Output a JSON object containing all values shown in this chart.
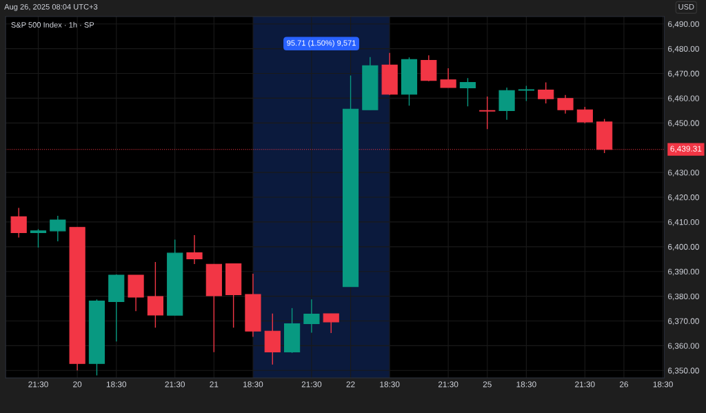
{
  "chart_data": {
    "type": "candlestick",
    "title": "S&P 500 Index · 1h · SP",
    "categories": [
      null,
      "21:30",
      null,
      "20",
      null,
      "18:30",
      null,
      null,
      "21:30",
      null,
      "21",
      null,
      "18:30",
      null,
      null,
      "21:30",
      null,
      "22",
      null,
      "18:30",
      null,
      null,
      "21:30",
      null,
      "25",
      null,
      "18:30",
      null,
      null,
      "21:30",
      null,
      "26",
      null,
      "18:30"
    ],
    "ohlc": [
      [
        6412.1,
        6415.7,
        6403.7,
        6405.7
      ],
      [
        6405.7,
        6407.1,
        6399.7,
        6406.4
      ],
      [
        6406.4,
        6412.5,
        6402.2,
        6410.8
      ],
      [
        6407.8,
        6407.8,
        6350.0,
        6352.8
      ],
      [
        6352.8,
        6378.7,
        6348.0,
        6378.1
      ],
      [
        6377.8,
        6388.8,
        6361.7,
        6388.5
      ],
      [
        6388.5,
        6388.5,
        6374.0,
        6379.6
      ],
      [
        6379.9,
        6393.8,
        6367.3,
        6372.4
      ],
      [
        6372.3,
        6402.9,
        6372.3,
        6397.4
      ],
      [
        6397.6,
        6404.7,
        6393.0,
        6395.1
      ],
      [
        6392.9,
        6392.9,
        6357.4,
        6380.2
      ],
      [
        6393.1,
        6393.1,
        6367.3,
        6380.6
      ],
      [
        6380.7,
        6389.1,
        6363.6,
        6365.9
      ],
      [
        6365.9,
        6373.0,
        6352.4,
        6357.5
      ],
      [
        6357.5,
        6375.2,
        6357.1,
        6368.9
      ],
      [
        6368.9,
        6378.7,
        6365.3,
        6372.8
      ],
      [
        6372.9,
        6372.9,
        6365.1,
        6369.6
      ],
      [
        6383.9,
        6469.2,
        6383.9,
        6455.6
      ],
      [
        6455.3,
        6476.6,
        6455.3,
        6473.1
      ],
      [
        6473.4,
        6478.3,
        6461.3,
        6461.6
      ],
      [
        6461.6,
        6476.5,
        6457.0,
        6475.6
      ],
      [
        6475.3,
        6477.3,
        6466.9,
        6467.2
      ],
      [
        6467.4,
        6472.1,
        6464.3,
        6464.3
      ],
      [
        6464.2,
        6468.1,
        6456.7,
        6466.4
      ],
      [
        6455.0,
        6460.7,
        6447.5,
        6454.8
      ],
      [
        6455.0,
        6464.3,
        6451.3,
        6463.1
      ],
      [
        6463.2,
        6465.0,
        6458.9,
        6463.4
      ],
      [
        6463.3,
        6466.4,
        6457.9,
        6459.8
      ],
      [
        6459.9,
        6461.3,
        6453.8,
        6455.3
      ],
      [
        6455.3,
        6456.5,
        6449.9,
        6450.4
      ],
      [
        6450.4,
        6451.6,
        6437.8,
        6439.31
      ],
      null,
      null,
      null
    ],
    "colors": [
      "#f23645",
      "#089981",
      "#089981",
      "#f23645",
      "#089981",
      "#089981",
      "#f23645",
      "#f23645",
      "#089981",
      "#f23645",
      "#f23645",
      "#f23645",
      "#f23645",
      "#f23645",
      "#089981",
      "#089981",
      "#f23645",
      "#089981",
      "#089981",
      "#f23645",
      "#089981",
      "#f23645",
      "#f23645",
      "#089981",
      "#f23645",
      "#089981",
      "#089981",
      "#f23645",
      "#f23645",
      "#f23645",
      "#f23645",
      null,
      null,
      null
    ],
    "ylim": [
      6347.0,
      6493.0
    ],
    "yticks": [
      {
        "value": 6350,
        "label": "6,350.00"
      },
      {
        "value": 6360,
        "label": "6,360.00"
      },
      {
        "value": 6370,
        "label": "6,370.00"
      },
      {
        "value": 6380,
        "label": "6,380.00"
      },
      {
        "value": 6390,
        "label": "6,390.00"
      },
      {
        "value": 6400,
        "label": "6,400.00"
      },
      {
        "value": 6410,
        "label": "6,410.00"
      },
      {
        "value": 6420,
        "label": "6,420.00"
      },
      {
        "value": 6430,
        "label": "6,430.00"
      },
      {
        "value": 6450,
        "label": "6,450.00"
      },
      {
        "value": 6460,
        "label": "6,460.00"
      },
      {
        "value": 6470,
        "label": "6,470.00"
      },
      {
        "value": 6480,
        "label": "6,480.00"
      },
      {
        "value": 6490,
        "label": "6,490.00"
      }
    ],
    "grid": true,
    "ref_lines": [
      {
        "axis": "y",
        "value": 6439.31,
        "label": "6,439.31",
        "color": "#f23645",
        "line_style": "dotted"
      }
    ],
    "annotations": [
      "95.71 (1.50%) 9,571",
      "Aug 26, 2025 08:04 UTC+3",
      "USD"
    ]
  }
}
